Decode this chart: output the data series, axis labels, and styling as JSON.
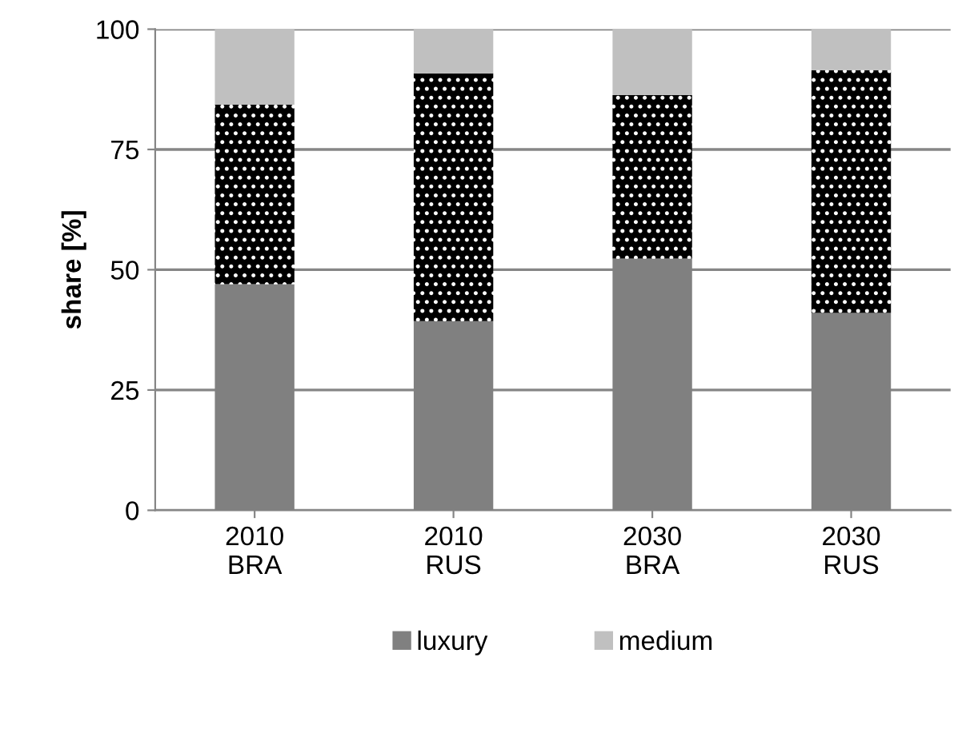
{
  "chart_data": {
    "type": "bar",
    "stacked": true,
    "ylabel": "share [%]",
    "categories": [
      "2010\nBRA",
      "2010\nRUS",
      "2030\nBRA",
      "2030\nRUS"
    ],
    "series": [
      {
        "name": "luxury",
        "color": "#808080",
        "values": [
          47.0,
          39.3,
          52.3,
          41.0
        ]
      },
      {
        "color": "#000000",
        "values": [
          37.3,
          51.5,
          34.0,
          50.5
        ]
      },
      {
        "name": "medium",
        "color": "#c0c0c0",
        "values": [
          15.7,
          9.2,
          13.7,
          8.5
        ]
      }
    ],
    "ylim": [
      0,
      100
    ],
    "yticks": [
      0,
      25,
      50,
      75,
      100
    ],
    "grid": "y",
    "legend": "bottom"
  }
}
